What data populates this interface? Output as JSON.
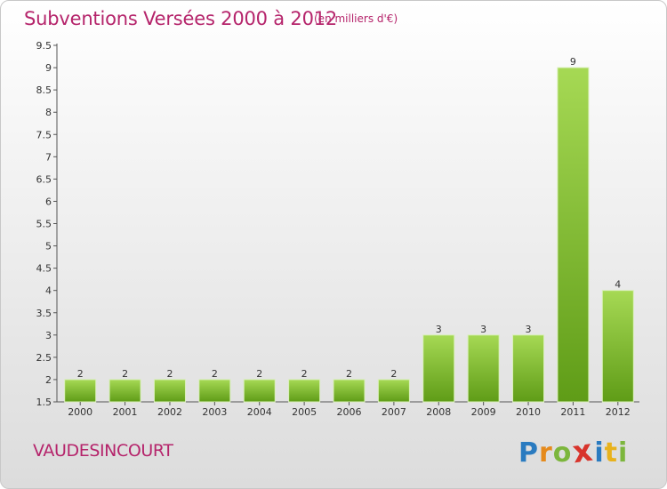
{
  "header": {
    "title": "Subventions Versées 2000 à 2012",
    "subtitle": "(en milliers d'€)"
  },
  "footer": {
    "commune": "VAUDESINCOURT",
    "logo_text": "Proxiti"
  },
  "colors": {
    "title": "#b5246b",
    "bar_light": "#a6d954",
    "bar_dark": "#5f9c17",
    "logo_p": "#2a7bc0",
    "logo_r": "#e58a1c",
    "logo_o": "#7cb63c",
    "logo_x": "#d8342c",
    "logo_i": "#2a7bc0",
    "logo_t": "#e8b21c",
    "logo_i2": "#7cb63c"
  },
  "chart_data": {
    "type": "bar",
    "title": "Subventions Versées 2000 à 2012",
    "subtitle": "(en milliers d'€)",
    "categories": [
      "2000",
      "2001",
      "2002",
      "2003",
      "2004",
      "2005",
      "2006",
      "2007",
      "2008",
      "2009",
      "2010",
      "2011",
      "2012"
    ],
    "values": [
      2,
      2,
      2,
      2,
      2,
      2,
      2,
      2,
      3,
      3,
      3,
      9,
      4
    ],
    "ylim": [
      1.5,
      9.5
    ],
    "yticks": [
      "1.5",
      "2",
      "2.5",
      "3",
      "3.5",
      "4",
      "4.5",
      "5",
      "5.5",
      "6",
      "6.5",
      "7",
      "7.5",
      "8",
      "8.5",
      "9",
      "9.5"
    ],
    "grid": false,
    "legend": "none"
  }
}
